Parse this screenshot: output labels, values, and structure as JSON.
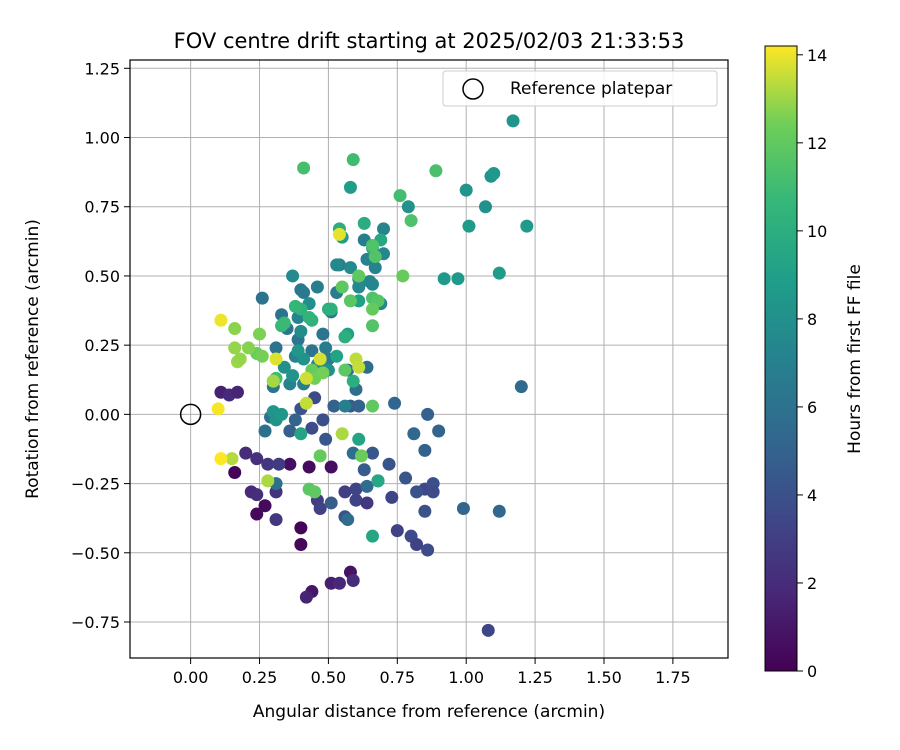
{
  "chart_data": {
    "type": "scatter",
    "title": "FOV centre drift starting at 2025/02/03 21:33:53",
    "xlabel": "Angular distance from reference (arcmin)",
    "ylabel": "Rotation from reference (arcmin)",
    "xlim": [
      -0.22,
      1.95
    ],
    "ylim": [
      -0.88,
      1.28
    ],
    "xticks": [
      0.0,
      0.25,
      0.5,
      0.75,
      1.0,
      1.25,
      1.5,
      1.75
    ],
    "xtick_labels": [
      "0.00",
      "0.25",
      "0.50",
      "0.75",
      "1.00",
      "1.25",
      "1.50",
      "1.75"
    ],
    "yticks": [
      -0.75,
      -0.5,
      -0.25,
      0.0,
      0.25,
      0.5,
      0.75,
      1.0,
      1.25
    ],
    "ytick_labels": [
      "−0.75",
      "−0.50",
      "−0.25",
      "0.00",
      "0.25",
      "0.50",
      "0.75",
      "1.00",
      "1.25"
    ],
    "grid": true,
    "legend": {
      "label": "Reference platepar",
      "placement": "top-right"
    },
    "reference_point": {
      "x": 0.0,
      "y": 0.0
    },
    "colorbar": {
      "label": "Hours from first FF file",
      "colormap": "viridis",
      "range": [
        0,
        14.2
      ],
      "ticks": [
        0,
        2,
        4,
        6,
        8,
        10,
        12,
        14
      ],
      "tick_labels": [
        "0",
        "2",
        "4",
        "6",
        "8",
        "10",
        "12",
        "14"
      ]
    },
    "points": [
      {
        "x": 0.16,
        "y": -0.21,
        "h": 0.2
      },
      {
        "x": 0.24,
        "y": -0.36,
        "h": 0.3
      },
      {
        "x": 0.27,
        "y": -0.33,
        "h": 0.4
      },
      {
        "x": 0.4,
        "y": -0.41,
        "h": 0.2
      },
      {
        "x": 0.4,
        "y": -0.47,
        "h": 0.3
      },
      {
        "x": 0.36,
        "y": -0.18,
        "h": 0.6
      },
      {
        "x": 0.43,
        "y": -0.19,
        "h": 0.5
      },
      {
        "x": 0.51,
        "y": -0.19,
        "h": 0.6
      },
      {
        "x": 0.44,
        "y": -0.64,
        "h": 1.0
      },
      {
        "x": 0.58,
        "y": -0.57,
        "h": 0.8
      },
      {
        "x": 0.42,
        "y": -0.66,
        "h": 1.6
      },
      {
        "x": 0.51,
        "y": -0.61,
        "h": 1.4
      },
      {
        "x": 0.54,
        "y": -0.61,
        "h": 1.8
      },
      {
        "x": 0.59,
        "y": -0.6,
        "h": 2.0
      },
      {
        "x": 0.11,
        "y": 0.08,
        "h": 1.5
      },
      {
        "x": 0.14,
        "y": 0.07,
        "h": 1.9
      },
      {
        "x": 0.17,
        "y": 0.08,
        "h": 1.6
      },
      {
        "x": 0.2,
        "y": -0.14,
        "h": 2.0
      },
      {
        "x": 0.24,
        "y": -0.16,
        "h": 2.2
      },
      {
        "x": 0.28,
        "y": -0.18,
        "h": 2.5
      },
      {
        "x": 0.22,
        "y": -0.28,
        "h": 1.9
      },
      {
        "x": 0.24,
        "y": -0.29,
        "h": 2.1
      },
      {
        "x": 0.31,
        "y": -0.28,
        "h": 2.3
      },
      {
        "x": 0.31,
        "y": -0.38,
        "h": 2.6
      },
      {
        "x": 0.32,
        "y": -0.18,
        "h": 2.8
      },
      {
        "x": 0.46,
        "y": -0.31,
        "h": 2.9
      },
      {
        "x": 0.47,
        "y": -0.34,
        "h": 3.1
      },
      {
        "x": 0.56,
        "y": -0.28,
        "h": 3.0
      },
      {
        "x": 0.6,
        "y": -0.31,
        "h": 3.2
      },
      {
        "x": 0.6,
        "y": -0.27,
        "h": 3.3
      },
      {
        "x": 0.64,
        "y": -0.32,
        "h": 2.7
      },
      {
        "x": 0.68,
        "y": -0.24,
        "h": 3.4
      },
      {
        "x": 0.73,
        "y": -0.3,
        "h": 3.3
      },
      {
        "x": 0.75,
        "y": -0.42,
        "h": 3.1
      },
      {
        "x": 0.8,
        "y": -0.44,
        "h": 3.6
      },
      {
        "x": 0.82,
        "y": -0.47,
        "h": 3.2
      },
      {
        "x": 0.85,
        "y": -0.27,
        "h": 3.5
      },
      {
        "x": 0.86,
        "y": -0.49,
        "h": 3.8
      },
      {
        "x": 0.88,
        "y": -0.25,
        "h": 3.9
      },
      {
        "x": 0.88,
        "y": -0.28,
        "h": 3.6
      },
      {
        "x": 1.08,
        "y": -0.78,
        "h": 3.4
      },
      {
        "x": 0.82,
        "y": -0.28,
        "h": 4.1
      },
      {
        "x": 0.85,
        "y": -0.35,
        "h": 4.0
      },
      {
        "x": 0.78,
        "y": -0.23,
        "h": 4.3
      },
      {
        "x": 0.72,
        "y": -0.18,
        "h": 4.2
      },
      {
        "x": 0.66,
        "y": -0.14,
        "h": 4.4
      },
      {
        "x": 0.63,
        "y": -0.2,
        "h": 4.6
      },
      {
        "x": 0.56,
        "y": -0.37,
        "h": 4.2
      },
      {
        "x": 0.51,
        "y": -0.32,
        "h": 4.7
      },
      {
        "x": 0.44,
        "y": -0.05,
        "h": 3.6
      },
      {
        "x": 0.48,
        "y": -0.02,
        "h": 3.9
      },
      {
        "x": 0.45,
        "y": 0.06,
        "h": 3.7
      },
      {
        "x": 0.4,
        "y": 0.02,
        "h": 4.2
      },
      {
        "x": 0.49,
        "y": -0.09,
        "h": 4.4
      },
      {
        "x": 0.36,
        "y": -0.06,
        "h": 4.8
      },
      {
        "x": 0.38,
        "y": -0.02,
        "h": 5.1
      },
      {
        "x": 0.52,
        "y": 0.03,
        "h": 4.9
      },
      {
        "x": 0.58,
        "y": 0.03,
        "h": 4.5
      },
      {
        "x": 0.61,
        "y": 0.03,
        "h": 5.0
      },
      {
        "x": 0.74,
        "y": 0.04,
        "h": 5.2
      },
      {
        "x": 0.86,
        "y": 0.0,
        "h": 4.9
      },
      {
        "x": 0.81,
        "y": -0.07,
        "h": 5.3
      },
      {
        "x": 0.85,
        "y": -0.13,
        "h": 5.0
      },
      {
        "x": 0.9,
        "y": -0.06,
        "h": 5.1
      },
      {
        "x": 0.99,
        "y": -0.34,
        "h": 5.2
      },
      {
        "x": 1.12,
        "y": -0.35,
        "h": 5.4
      },
      {
        "x": 1.2,
        "y": 0.1,
        "h": 5.5
      },
      {
        "x": 0.57,
        "y": -0.38,
        "h": 5.6
      },
      {
        "x": 0.59,
        "y": -0.14,
        "h": 5.7
      },
      {
        "x": 0.64,
        "y": -0.26,
        "h": 5.6
      },
      {
        "x": 0.6,
        "y": 0.09,
        "h": 5.8
      },
      {
        "x": 0.64,
        "y": 0.17,
        "h": 5.7
      },
      {
        "x": 0.57,
        "y": 0.16,
        "h": 5.8
      },
      {
        "x": 0.27,
        "y": -0.06,
        "h": 5.9
      },
      {
        "x": 0.29,
        "y": -0.01,
        "h": 6.0
      },
      {
        "x": 0.31,
        "y": -0.25,
        "h": 5.9
      },
      {
        "x": 0.26,
        "y": 0.42,
        "h": 6.0
      },
      {
        "x": 0.31,
        "y": 0.24,
        "h": 6.1
      },
      {
        "x": 0.3,
        "y": 0.1,
        "h": 6.2
      },
      {
        "x": 0.33,
        "y": 0.36,
        "h": 6.1
      },
      {
        "x": 0.35,
        "y": 0.31,
        "h": 6.2
      },
      {
        "x": 0.39,
        "y": 0.27,
        "h": 6.3
      },
      {
        "x": 0.4,
        "y": 0.45,
        "h": 6.4
      },
      {
        "x": 0.41,
        "y": 0.44,
        "h": 6.5
      },
      {
        "x": 0.44,
        "y": 0.23,
        "h": 6.2
      },
      {
        "x": 0.48,
        "y": 0.29,
        "h": 6.3
      },
      {
        "x": 0.51,
        "y": 0.37,
        "h": 6.4
      },
      {
        "x": 0.5,
        "y": 0.2,
        "h": 6.6
      },
      {
        "x": 0.53,
        "y": 0.44,
        "h": 6.7
      },
      {
        "x": 0.54,
        "y": 0.54,
        "h": 6.8
      },
      {
        "x": 0.46,
        "y": 0.46,
        "h": 6.9
      },
      {
        "x": 0.49,
        "y": 0.24,
        "h": 6.7
      },
      {
        "x": 0.46,
        "y": 0.18,
        "h": 7.0
      },
      {
        "x": 0.56,
        "y": 0.03,
        "h": 6.9
      },
      {
        "x": 0.41,
        "y": 0.11,
        "h": 6.8
      },
      {
        "x": 0.38,
        "y": 0.21,
        "h": 7.0
      },
      {
        "x": 0.36,
        "y": 0.11,
        "h": 7.1
      },
      {
        "x": 0.39,
        "y": 0.35,
        "h": 7.2
      },
      {
        "x": 0.63,
        "y": 0.63,
        "h": 6.8
      },
      {
        "x": 0.64,
        "y": 0.56,
        "h": 7.0
      },
      {
        "x": 0.67,
        "y": 0.53,
        "h": 7.1
      },
      {
        "x": 0.65,
        "y": 0.48,
        "h": 7.3
      },
      {
        "x": 0.69,
        "y": 0.4,
        "h": 7.2
      },
      {
        "x": 0.7,
        "y": 0.67,
        "h": 7.3
      },
      {
        "x": 0.7,
        "y": 0.58,
        "h": 7.4
      },
      {
        "x": 0.66,
        "y": 0.47,
        "h": 7.4
      },
      {
        "x": 0.61,
        "y": 0.46,
        "h": 7.5
      },
      {
        "x": 0.61,
        "y": 0.49,
        "h": 7.6
      },
      {
        "x": 0.53,
        "y": 0.54,
        "h": 7.5
      },
      {
        "x": 0.58,
        "y": 0.53,
        "h": 7.7
      },
      {
        "x": 0.37,
        "y": 0.5,
        "h": 7.6
      },
      {
        "x": 0.4,
        "y": 0.3,
        "h": 7.8
      },
      {
        "x": 0.43,
        "y": 0.4,
        "h": 7.9
      },
      {
        "x": 0.47,
        "y": 0.19,
        "h": 7.9
      },
      {
        "x": 0.5,
        "y": 0.16,
        "h": 8.0
      },
      {
        "x": 0.41,
        "y": 0.2,
        "h": 8.1
      },
      {
        "x": 0.34,
        "y": 0.17,
        "h": 8.0
      },
      {
        "x": 0.37,
        "y": 0.14,
        "h": 8.2
      },
      {
        "x": 0.3,
        "y": 0.01,
        "h": 8.3
      },
      {
        "x": 0.31,
        "y": -0.02,
        "h": 8.2
      },
      {
        "x": 0.33,
        "y": 0.0,
        "h": 8.4
      },
      {
        "x": 0.39,
        "y": 0.23,
        "h": 8.4
      },
      {
        "x": 0.79,
        "y": 0.75,
        "h": 8.1
      },
      {
        "x": 1.0,
        "y": 0.81,
        "h": 8.3
      },
      {
        "x": 1.07,
        "y": 0.75,
        "h": 8.0
      },
      {
        "x": 1.09,
        "y": 0.86,
        "h": 8.2
      },
      {
        "x": 1.1,
        "y": 0.87,
        "h": 8.5
      },
      {
        "x": 1.17,
        "y": 1.06,
        "h": 8.3
      },
      {
        "x": 1.22,
        "y": 0.68,
        "h": 8.6
      },
      {
        "x": 1.12,
        "y": 0.51,
        "h": 8.7
      },
      {
        "x": 0.97,
        "y": 0.49,
        "h": 8.5
      },
      {
        "x": 0.92,
        "y": 0.49,
        "h": 8.6
      },
      {
        "x": 1.01,
        "y": 0.68,
        "h": 8.7
      },
      {
        "x": 0.58,
        "y": 0.82,
        "h": 8.8
      },
      {
        "x": 0.55,
        "y": 0.64,
        "h": 8.9
      },
      {
        "x": 0.61,
        "y": 0.41,
        "h": 9.0
      },
      {
        "x": 0.57,
        "y": 0.29,
        "h": 9.1
      },
      {
        "x": 0.53,
        "y": 0.21,
        "h": 9.2
      },
      {
        "x": 0.4,
        "y": -0.07,
        "h": 9.3
      },
      {
        "x": 0.61,
        "y": -0.09,
        "h": 9.3
      },
      {
        "x": 0.66,
        "y": -0.44,
        "h": 9.4
      },
      {
        "x": 0.68,
        "y": -0.24,
        "h": 9.5
      },
      {
        "x": 0.69,
        "y": 0.63,
        "h": 9.6
      },
      {
        "x": 0.67,
        "y": 0.57,
        "h": 9.7
      },
      {
        "x": 0.66,
        "y": 0.6,
        "h": 9.8
      },
      {
        "x": 0.54,
        "y": 0.67,
        "h": 9.9
      },
      {
        "x": 0.63,
        "y": 0.69,
        "h": 9.9
      },
      {
        "x": 0.59,
        "y": 0.12,
        "h": 10.0
      },
      {
        "x": 0.56,
        "y": 0.28,
        "h": 10.0
      },
      {
        "x": 0.5,
        "y": 0.38,
        "h": 10.1
      },
      {
        "x": 0.51,
        "y": 0.38,
        "h": 10.2
      },
      {
        "x": 0.44,
        "y": 0.34,
        "h": 10.3
      },
      {
        "x": 0.43,
        "y": 0.35,
        "h": 10.4
      },
      {
        "x": 0.4,
        "y": 0.38,
        "h": 10.3
      },
      {
        "x": 0.38,
        "y": 0.39,
        "h": 10.6
      },
      {
        "x": 0.33,
        "y": 0.32,
        "h": 10.7
      },
      {
        "x": 0.34,
        "y": 0.33,
        "h": 10.8
      },
      {
        "x": 0.3,
        "y": 0.12,
        "h": 10.9
      },
      {
        "x": 0.31,
        "y": 0.13,
        "h": 11.0
      },
      {
        "x": 0.59,
        "y": 0.92,
        "h": 11.0
      },
      {
        "x": 0.41,
        "y": 0.89,
        "h": 11.2
      },
      {
        "x": 0.76,
        "y": 0.79,
        "h": 11.1
      },
      {
        "x": 0.89,
        "y": 0.88,
        "h": 11.3
      },
      {
        "x": 0.8,
        "y": 0.7,
        "h": 11.4
      },
      {
        "x": 0.66,
        "y": 0.61,
        "h": 11.5
      },
      {
        "x": 0.67,
        "y": 0.57,
        "h": 11.6
      },
      {
        "x": 0.66,
        "y": 0.42,
        "h": 11.5
      },
      {
        "x": 0.68,
        "y": 0.41,
        "h": 11.7
      },
      {
        "x": 0.66,
        "y": 0.32,
        "h": 11.6
      },
      {
        "x": 0.58,
        "y": 0.41,
        "h": 11.8
      },
      {
        "x": 0.61,
        "y": 0.5,
        "h": 12.0
      },
      {
        "x": 0.55,
        "y": 0.46,
        "h": 11.9
      },
      {
        "x": 0.66,
        "y": 0.38,
        "h": 12.1
      },
      {
        "x": 0.77,
        "y": 0.5,
        "h": 12.2
      },
      {
        "x": 0.56,
        "y": 0.16,
        "h": 11.9
      },
      {
        "x": 0.66,
        "y": 0.03,
        "h": 12.0
      },
      {
        "x": 0.43,
        "y": -0.27,
        "h": 11.8
      },
      {
        "x": 0.45,
        "y": -0.28,
        "h": 12.0
      },
      {
        "x": 0.47,
        "y": -0.15,
        "h": 12.1
      },
      {
        "x": 0.62,
        "y": -0.15,
        "h": 12.3
      },
      {
        "x": 0.44,
        "y": 0.16,
        "h": 12.2
      },
      {
        "x": 0.45,
        "y": 0.13,
        "h": 12.4
      },
      {
        "x": 0.48,
        "y": 0.15,
        "h": 12.5
      },
      {
        "x": 0.24,
        "y": 0.22,
        "h": 12.3
      },
      {
        "x": 0.26,
        "y": 0.21,
        "h": 12.5
      },
      {
        "x": 0.25,
        "y": 0.29,
        "h": 12.6
      },
      {
        "x": 0.21,
        "y": 0.24,
        "h": 12.7
      },
      {
        "x": 0.16,
        "y": 0.31,
        "h": 12.8
      },
      {
        "x": 0.16,
        "y": 0.24,
        "h": 12.9
      },
      {
        "x": 0.17,
        "y": 0.19,
        "h": 13.0
      },
      {
        "x": 0.18,
        "y": 0.2,
        "h": 12.9
      },
      {
        "x": 0.3,
        "y": 0.12,
        "h": 13.1
      },
      {
        "x": 0.28,
        "y": -0.24,
        "h": 13.2
      },
      {
        "x": 0.15,
        "y": -0.16,
        "h": 13.3
      },
      {
        "x": 0.55,
        "y": -0.07,
        "h": 13.2
      },
      {
        "x": 0.6,
        "y": 0.2,
        "h": 13.4
      },
      {
        "x": 0.61,
        "y": 0.17,
        "h": 13.5
      },
      {
        "x": 0.42,
        "y": 0.04,
        "h": 13.5
      },
      {
        "x": 0.42,
        "y": 0.13,
        "h": 13.6
      },
      {
        "x": 0.47,
        "y": 0.2,
        "h": 13.7
      },
      {
        "x": 0.31,
        "y": 0.2,
        "h": 13.8
      },
      {
        "x": 0.54,
        "y": 0.65,
        "h": 13.9
      },
      {
        "x": 0.11,
        "y": 0.34,
        "h": 14.0
      },
      {
        "x": 0.1,
        "y": 0.02,
        "h": 14.1
      },
      {
        "x": 0.11,
        "y": -0.16,
        "h": 14.2
      }
    ]
  }
}
